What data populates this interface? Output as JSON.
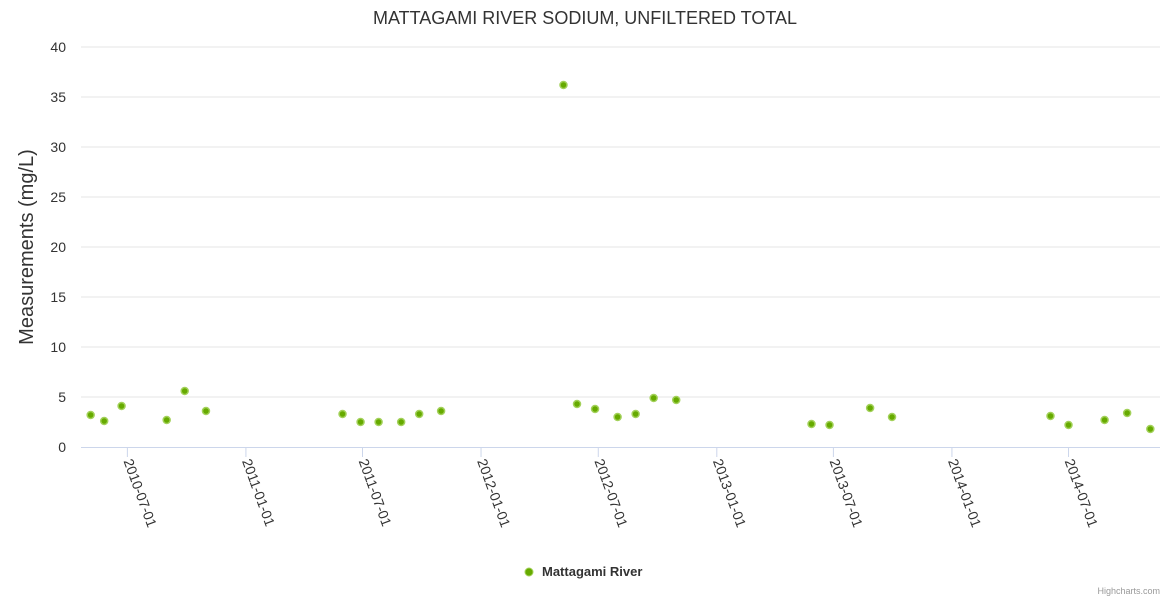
{
  "chart_data": {
    "type": "scatter",
    "title": "MATTAGAMI RIVER SODIUM, UNFILTERED TOTAL",
    "xlabel": "",
    "ylabel": "Measurements (mg/L)",
    "ylim": [
      0,
      40
    ],
    "yticks": [
      "0",
      "5",
      "10",
      "15",
      "20",
      "25",
      "30",
      "35",
      "40"
    ],
    "xlim": [
      "2010-04-20",
      "2014-11-20"
    ],
    "xticks": [
      {
        "date": "2010-07-01",
        "label": "2010-07-01"
      },
      {
        "date": "2011-01-01",
        "label": "2011-01-01"
      },
      {
        "date": "2011-07-01",
        "label": "2011-07-01"
      },
      {
        "date": "2012-01-01",
        "label": "2012-01-01"
      },
      {
        "date": "2012-07-01",
        "label": "2012-07-01"
      },
      {
        "date": "2013-01-01",
        "label": "2013-01-01"
      },
      {
        "date": "2013-07-01",
        "label": "2013-07-01"
      },
      {
        "date": "2014-01-01",
        "label": "2014-01-01"
      },
      {
        "date": "2014-07-01",
        "label": "2014-07-01"
      }
    ],
    "grid": true,
    "legend_position": "bottom-center",
    "series": [
      {
        "name": "Mattagami River",
        "color": "#7cb5ec",
        "fill": "#66aa00",
        "points": [
          {
            "x": "2010-05-05",
            "y": 3.2
          },
          {
            "x": "2010-05-26",
            "y": 2.6
          },
          {
            "x": "2010-06-22",
            "y": 4.1
          },
          {
            "x": "2010-08-31",
            "y": 2.7
          },
          {
            "x": "2010-09-28",
            "y": 5.6
          },
          {
            "x": "2010-10-31",
            "y": 3.6
          },
          {
            "x": "2011-05-31",
            "y": 3.3
          },
          {
            "x": "2011-06-28",
            "y": 2.5
          },
          {
            "x": "2011-07-26",
            "y": 2.5
          },
          {
            "x": "2011-08-30",
            "y": 2.5
          },
          {
            "x": "2011-09-27",
            "y": 3.3
          },
          {
            "x": "2011-10-31",
            "y": 3.6
          },
          {
            "x": "2012-05-08",
            "y": 36.2
          },
          {
            "x": "2012-05-29",
            "y": 4.3
          },
          {
            "x": "2012-06-26",
            "y": 3.8
          },
          {
            "x": "2012-07-31",
            "y": 3.0
          },
          {
            "x": "2012-08-28",
            "y": 3.3
          },
          {
            "x": "2012-09-25",
            "y": 4.9
          },
          {
            "x": "2012-10-30",
            "y": 4.7
          },
          {
            "x": "2013-05-28",
            "y": 2.3
          },
          {
            "x": "2013-06-25",
            "y": 2.2
          },
          {
            "x": "2013-08-27",
            "y": 3.9
          },
          {
            "x": "2013-09-30",
            "y": 3.0
          },
          {
            "x": "2014-06-03",
            "y": 3.1
          },
          {
            "x": "2014-07-01",
            "y": 2.2
          },
          {
            "x": "2014-08-26",
            "y": 2.7
          },
          {
            "x": "2014-09-30",
            "y": 3.4
          },
          {
            "x": "2014-11-05",
            "y": 1.8
          }
        ]
      }
    ]
  },
  "credits": "Highcharts.com"
}
